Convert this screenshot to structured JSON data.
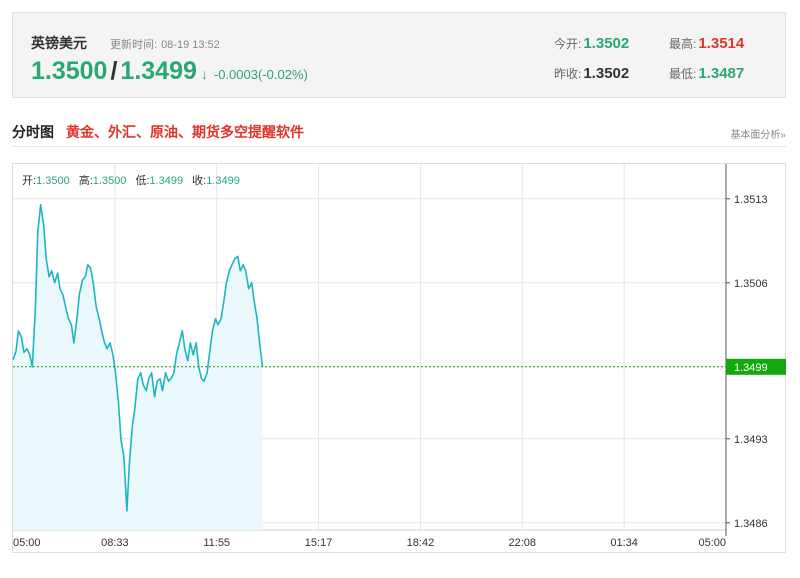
{
  "quote": {
    "name": "英镑美元",
    "update_label": "更新时间:",
    "update_time": "08-19 13:52",
    "price_bid": "1.3500",
    "price_slash": "/",
    "price_ask": "1.3499",
    "arrow": "↓",
    "change": "-0.0003(-0.02%)",
    "open_label": "今开:",
    "open_value": "1.3502",
    "high_label": "最高:",
    "high_value": "1.3514",
    "prev_close_label": "昨收:",
    "prev_close_value": "1.3502",
    "low_label": "最低:",
    "low_value": "1.3487"
  },
  "section": {
    "title": "分时图",
    "promo": "黄金、外汇、原油、期货多空提醒软件",
    "fundamental_link": "基本面分析»"
  },
  "ohlc_bar": {
    "open_label": "开:",
    "open": "1.3500",
    "high_label": "高:",
    "high": "1.3500",
    "low_label": "低:",
    "low": "1.3499",
    "close_label": "收:",
    "close": "1.3499"
  },
  "colors": {
    "line": "#1cb5c3",
    "fill": "#eaf8fb",
    "grid": "#e6e6e6",
    "current_line": "#1aa020",
    "current_tag": "#11a90f",
    "green": "#2aa775",
    "red": "#e0352b"
  },
  "chart_data": {
    "type": "area",
    "x_tick_labels": [
      "05:00",
      "08:33",
      "11:55",
      "15:17",
      "18:42",
      "22:08",
      "01:34",
      "05:00"
    ],
    "y_tick_labels": [
      "1.3513",
      "1.3506",
      "1.3499",
      "1.3493",
      "1.3486"
    ],
    "y_ticks": [
      1.3513,
      1.3506,
      1.3499,
      1.3493,
      1.3486
    ],
    "ylim": [
      1.34854,
      1.35159
    ],
    "session_minutes": 1440,
    "current_price": 1.3499,
    "current_price_label": "1.3499",
    "grid": true,
    "series": [
      {
        "x": [
          0,
          6,
          11,
          17,
          22,
          28,
          34,
          39,
          45,
          50,
          56,
          62,
          67,
          73,
          78,
          84,
          90,
          95,
          101,
          106,
          112,
          118,
          123,
          129,
          134,
          140,
          146,
          151,
          157,
          162,
          168,
          174,
          179,
          185,
          190,
          196,
          202,
          207,
          213,
          218,
          224,
          230,
          235,
          241,
          246,
          252,
          258,
          263,
          269,
          274,
          280,
          286,
          291,
          297,
          302,
          308,
          314,
          319,
          325,
          330,
          336,
          342,
          347,
          353,
          358,
          364,
          370,
          375,
          381,
          386,
          392,
          398,
          403,
          409,
          414,
          420,
          426,
          431,
          437,
          442,
          448,
          454,
          459,
          465,
          470,
          476,
          482,
          487,
          493,
          498,
          504
        ],
        "y": [
          1.34996,
          1.35003,
          1.3502,
          1.35015,
          1.35002,
          1.35005,
          1.35,
          1.3499,
          1.35037,
          1.35103,
          1.35125,
          1.35108,
          1.3508,
          1.35065,
          1.3507,
          1.3506,
          1.35068,
          1.35055,
          1.3505,
          1.3504,
          1.3503,
          1.35025,
          1.3501,
          1.3503,
          1.3505,
          1.35062,
          1.35065,
          1.35075,
          1.35072,
          1.3506,
          1.3504,
          1.3503,
          1.3502,
          1.3501,
          1.35005,
          1.3501,
          1.35,
          1.34985,
          1.3496,
          1.3493,
          1.34915,
          1.3487,
          1.3491,
          1.3494,
          1.34955,
          1.3498,
          1.34985,
          1.34975,
          1.3497,
          1.3498,
          1.34985,
          1.34965,
          1.34978,
          1.3498,
          1.3497,
          1.34985,
          1.34978,
          1.3498,
          1.34985,
          1.35,
          1.3501,
          1.3502,
          1.35005,
          1.34995,
          1.3501,
          1.35,
          1.3501,
          1.3499,
          1.3498,
          1.34978,
          1.34985,
          1.35005,
          1.3502,
          1.3503,
          1.35025,
          1.3503,
          1.35045,
          1.3506,
          1.3507,
          1.35075,
          1.3508,
          1.35082,
          1.3507,
          1.35075,
          1.3507,
          1.35055,
          1.3506,
          1.35045,
          1.3503,
          1.3501,
          1.3499
        ]
      }
    ]
  }
}
